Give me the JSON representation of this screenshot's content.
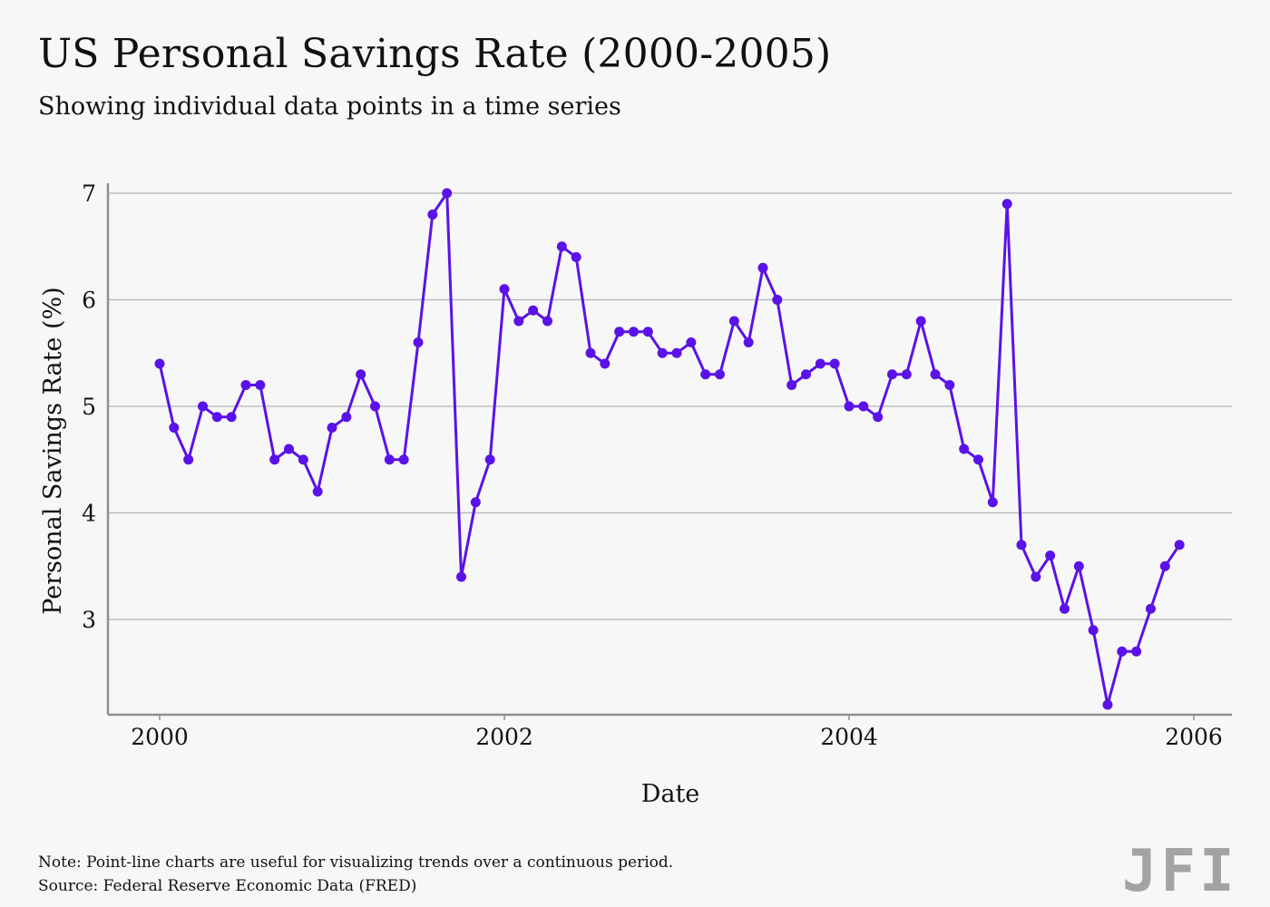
{
  "header": {
    "title": "US Personal Savings Rate (2000-2005)",
    "subtitle": "Showing individual data points in a time series"
  },
  "footer": {
    "note": "Note: Point-line charts are useful for visualizing trends over a continuous period.",
    "source": "Source: Federal Reserve Economic Data (FRED)",
    "logo": "JFI"
  },
  "colors": {
    "series": "#5b12e8",
    "grid": "#b5b5b5",
    "axis": "#8f8f8f",
    "background": "#f7f7f7",
    "logo": "#a3a3a3"
  },
  "chart_data": {
    "type": "line",
    "xlabel": "Date",
    "ylabel": "Personal Savings Rate (%)",
    "xlim": [
      "1999-10",
      "2006-01"
    ],
    "ylim": [
      2.1,
      7.1
    ],
    "x_ticks": [
      "2000",
      "2002",
      "2004",
      "2006"
    ],
    "y_ticks": [
      3,
      4,
      5,
      6,
      7
    ],
    "grid": "horizontal",
    "markers": true,
    "x": [
      "2000-01",
      "2000-02",
      "2000-03",
      "2000-04",
      "2000-05",
      "2000-06",
      "2000-07",
      "2000-08",
      "2000-09",
      "2000-10",
      "2000-11",
      "2000-12",
      "2001-01",
      "2001-02",
      "2001-03",
      "2001-04",
      "2001-05",
      "2001-06",
      "2001-07",
      "2001-08",
      "2001-09",
      "2001-10",
      "2001-11",
      "2001-12",
      "2002-01",
      "2002-02",
      "2002-03",
      "2002-04",
      "2002-05",
      "2002-06",
      "2002-07",
      "2002-08",
      "2002-09",
      "2002-10",
      "2002-11",
      "2002-12",
      "2003-01",
      "2003-02",
      "2003-03",
      "2003-04",
      "2003-05",
      "2003-06",
      "2003-07",
      "2003-08",
      "2003-09",
      "2003-10",
      "2003-11",
      "2003-12",
      "2004-01",
      "2004-02",
      "2004-03",
      "2004-04",
      "2004-05",
      "2004-06",
      "2004-07",
      "2004-08",
      "2004-09",
      "2004-10",
      "2004-11",
      "2004-12",
      "2005-01",
      "2005-02",
      "2005-03",
      "2005-04",
      "2005-05",
      "2005-06",
      "2005-07",
      "2005-08",
      "2005-09",
      "2005-10",
      "2005-11",
      "2005-12"
    ],
    "series": [
      {
        "values": [
          5.4,
          4.8,
          4.5,
          5.0,
          4.9,
          4.9,
          5.2,
          5.2,
          4.5,
          4.6,
          4.5,
          4.2,
          4.8,
          4.9,
          5.3,
          5.0,
          4.5,
          4.5,
          5.6,
          6.8,
          7.0,
          3.4,
          4.1,
          4.5,
          6.1,
          5.8,
          5.9,
          5.8,
          6.5,
          6.4,
          5.5,
          5.4,
          5.7,
          5.7,
          5.7,
          5.5,
          5.5,
          5.6,
          5.3,
          5.3,
          5.8,
          5.6,
          6.3,
          6.0,
          5.2,
          5.3,
          5.4,
          5.4,
          5.0,
          5.0,
          4.9,
          5.3,
          5.3,
          5.8,
          5.3,
          5.2,
          4.6,
          4.5,
          4.1,
          6.9,
          3.7,
          3.4,
          3.6,
          3.1,
          3.5,
          2.9,
          2.2,
          2.7,
          2.7,
          3.1,
          3.5,
          3.7
        ]
      }
    ]
  }
}
